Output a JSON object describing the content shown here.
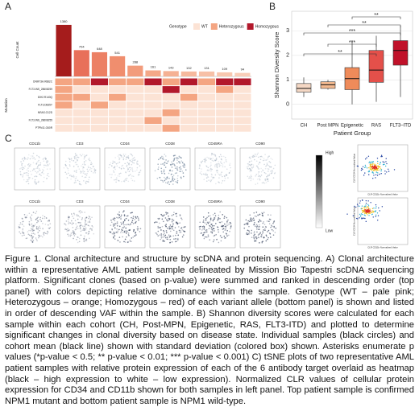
{
  "panel_labels": [
    "A",
    "B",
    "C"
  ],
  "chart_data": [
    {
      "type": "bar",
      "ylabel": "Cell Count",
      "heatmap_label": "Mutation",
      "values": [
        1380,
        704,
        648,
        541,
        288,
        161,
        143,
        132,
        131,
        109,
        94
      ],
      "colors": [
        "#a51c1c",
        "#e8705a",
        "#ec8064",
        "#f08e6e",
        "#f29c7c",
        "#f4a888",
        "#f5b193",
        "#f6b99d",
        "#f7c0a6",
        "#f8c7af",
        "#f9cdb8"
      ],
      "ylim": [
        0,
        1400
      ],
      "legend": {
        "title": "Genotype",
        "entries": [
          {
            "name": "WT",
            "color": "#fce3d5"
          },
          {
            "name": "Heterozygous",
            "color": "#f4a582"
          },
          {
            "name": "Homozygous",
            "color": "#b2182b"
          }
        ]
      },
      "mutations": [
        "DNMT3A.R882C",
        "FLT3.INS_28608259",
        "IDH2.R140Q",
        "FLT3.D835Y",
        "NRAS.G12D",
        "FLT3.INS_28608255",
        "PTPN11.G60R"
      ],
      "genotypes": [
        [
          1,
          1,
          2,
          1,
          1,
          2,
          1,
          2,
          1,
          2,
          2
        ],
        [
          1,
          0,
          0,
          0,
          0,
          0,
          2,
          0,
          0,
          1,
          0
        ],
        [
          1,
          1,
          0,
          1,
          0,
          0,
          0,
          1,
          0,
          0,
          0
        ],
        [
          1,
          0,
          1,
          0,
          0,
          0,
          0,
          0,
          0,
          0,
          0
        ],
        [
          0,
          0,
          0,
          0,
          0,
          0,
          1,
          0,
          0,
          0,
          0
        ],
        [
          0,
          0,
          0,
          0,
          0,
          1,
          0,
          0,
          0,
          0,
          0
        ],
        [
          0,
          0,
          0,
          0,
          0,
          0,
          1,
          0,
          0,
          0,
          0
        ]
      ]
    },
    {
      "type": "box",
      "ylabel": "Shannon Diversity Score",
      "xlabel": "Patient Group",
      "categories": [
        "CH",
        "Post MPN",
        "Epigenetic",
        "RAS",
        "FLT3–ITD"
      ],
      "colors": [
        "#f4d7c4",
        "#f3b98f",
        "#ef8b5a",
        "#e4504a",
        "#c0122a"
      ],
      "whisker_low": [
        0.3,
        0.6,
        0.0,
        0.1,
        0.3
      ],
      "q1": [
        0.5,
        0.65,
        0.6,
        0.9,
        1.6
      ],
      "median": [
        0.65,
        0.8,
        1.05,
        1.4,
        2.2
      ],
      "q3": [
        0.85,
        0.92,
        1.5,
        2.2,
        2.6
      ],
      "whisker_high": [
        1.1,
        1.0,
        2.6,
        2.8,
        3.2
      ],
      "ylim": [
        -0.6,
        3.8
      ],
      "yticks": [
        0,
        1,
        2,
        3
      ],
      "significance": [
        "**",
        "**",
        "***",
        "***",
        "**"
      ]
    }
  ],
  "panel_c": {
    "markers_top": [
      "CD11b",
      "CD3",
      "CD34",
      "CD38",
      "CD45RA",
      "CD90"
    ],
    "markers_bottom": [
      "CD11b",
      "CD3",
      "CD34",
      "CD38",
      "CD45RA",
      "CD90"
    ],
    "scale_high": "High",
    "scale_low": "Low",
    "scatter_xlabel": "CLR CD11b Normalized Value",
    "scatter_ylabel": "CLR CD34 Normalized Value"
  },
  "caption": "Figure 1. Clonal architecture and structure by scDNA and protein sequencing. A) Clonal architecture within a representative AML patient sample delineated by Mission Bio Tapestri scDNA sequencing platform. Significant clones (based on p-value) were summed and ranked in descending order (top panel) with colors depicting relative dominance within the sample. Genotype (WT – pale pink; Heterozygous – orange; Homozygous – red) of each variant allele (bottom panel) is shown and listed in order of descending VAF within the sample. B) Shannon diversity scores were calculated for each sample within each cohort (CH, Post-MPN, Epigenetic, RAS, FLT3-ITD) and plotted to determine significant changes in clonal diversity based on disease state. Individual samples (black circles) and cohort mean (black line) shown with standard deviation (colored box) shown. Asterisks enumerate p values (*p-value < 0.5; ** p-value < 0.01; *** p-value < 0.001) C) tSNE plots of two representative AML patient samples with relative protein expression of each of the 6 antibody target overlaid as heatmap (black – high expression to white – low expression). Normalized CLR values of cellular protein expression for CD34 and CD11b shown for both samples in left panel. Top patient sample is confirmed NPM1 mutant and bottom patient sample is NPM1 wild-type."
}
